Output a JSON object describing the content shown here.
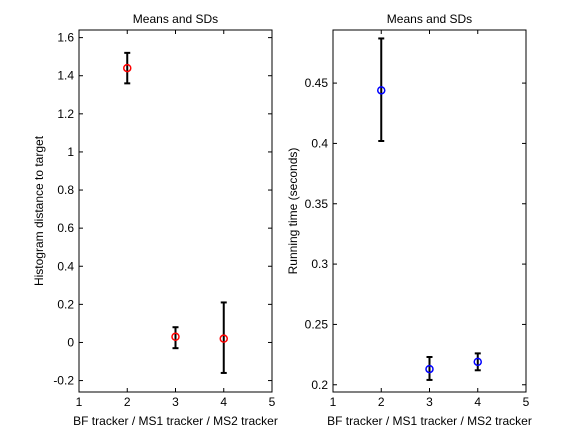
{
  "chart_data": [
    {
      "type": "scatter",
      "title": "Means and SDs",
      "xlabel": "BF tracker / MS1 tracker / MS2 tracker",
      "ylabel": "Histogram distance to target",
      "xlim": [
        1,
        5
      ],
      "ylim": [
        -0.26,
        1.64
      ],
      "xticks": [
        "1",
        "2",
        "3",
        "4",
        "5"
      ],
      "yticks": [
        "-0.2",
        "0",
        "0.2",
        "0.4",
        "0.6",
        "0.8",
        "1",
        "1.2",
        "1.4",
        "1.6"
      ],
      "grid": false,
      "marker_color": "#ff0000",
      "errorbar_color": "#000000",
      "points": [
        {
          "x": 2,
          "y": 1.44,
          "err_low": 1.36,
          "err_high": 1.52
        },
        {
          "x": 3,
          "y": 0.03,
          "err_low": -0.03,
          "err_high": 0.08
        },
        {
          "x": 4,
          "y": 0.02,
          "err_low": -0.16,
          "err_high": 0.21
        }
      ]
    },
    {
      "type": "scatter",
      "title": "Means and SDs",
      "xlabel": "BF tracker / MS1 tracker / MS2 tracker",
      "ylabel": "Running time (seconds)",
      "xlim": [
        1,
        5
      ],
      "ylim": [
        0.194,
        0.494
      ],
      "xticks": [
        "1",
        "2",
        "3",
        "4",
        "5"
      ],
      "yticks": [
        "0.2",
        "0.25",
        "0.3",
        "0.35",
        "0.4",
        "0.45"
      ],
      "grid": false,
      "marker_color": "#0000ff",
      "errorbar_color": "#000000",
      "points": [
        {
          "x": 2,
          "y": 0.444,
          "err_low": 0.402,
          "err_high": 0.487
        },
        {
          "x": 3,
          "y": 0.213,
          "err_low": 0.204,
          "err_high": 0.223
        },
        {
          "x": 4,
          "y": 0.219,
          "err_low": 0.212,
          "err_high": 0.226
        }
      ]
    }
  ]
}
